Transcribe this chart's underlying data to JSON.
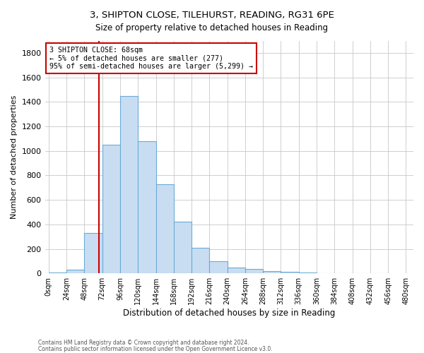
{
  "title1": "3, SHIPTON CLOSE, TILEHURST, READING, RG31 6PE",
  "title2": "Size of property relative to detached houses in Reading",
  "xlabel": "Distribution of detached houses by size in Reading",
  "ylabel": "Number of detached properties",
  "bar_values": [
    10,
    30,
    330,
    1050,
    1450,
    1080,
    730,
    420,
    210,
    100,
    50,
    35,
    22,
    15,
    5,
    3,
    2,
    1,
    0
  ],
  "bar_left_edges": [
    0,
    24,
    48,
    72,
    96,
    120,
    144,
    168,
    192,
    216,
    240,
    264,
    288,
    312,
    336,
    360,
    384,
    408,
    432
  ],
  "bin_width": 24,
  "bar_color": "#c9ddf2",
  "bar_edge_color": "#6aabd4",
  "vline_x": 68,
  "ylim": [
    0,
    1900
  ],
  "yticks": [
    0,
    200,
    400,
    600,
    800,
    1000,
    1200,
    1400,
    1600,
    1800
  ],
  "xtick_labels": [
    "0sqm",
    "24sqm",
    "48sqm",
    "72sqm",
    "96sqm",
    "120sqm",
    "144sqm",
    "168sqm",
    "192sqm",
    "216sqm",
    "240sqm",
    "264sqm",
    "288sqm",
    "312sqm",
    "336sqm",
    "360sqm",
    "384sqm",
    "408sqm",
    "432sqm",
    "456sqm",
    "480sqm"
  ],
  "xtick_positions": [
    0,
    24,
    48,
    72,
    96,
    120,
    144,
    168,
    192,
    216,
    240,
    264,
    288,
    312,
    336,
    360,
    384,
    408,
    432,
    456,
    480
  ],
  "annotation_line1": "3 SHIPTON CLOSE: 68sqm",
  "annotation_line2": "← 5% of detached houses are smaller (277)",
  "annotation_line3": "95% of semi-detached houses are larger (5,299) →",
  "annotation_box_color": "#ffffff",
  "annotation_box_edge": "#cc0000",
  "footer1": "Contains HM Land Registry data © Crown copyright and database right 2024.",
  "footer2": "Contains public sector information licensed under the Open Government Licence v3.0.",
  "background_color": "#ffffff",
  "grid_color": "#c8c8c8"
}
